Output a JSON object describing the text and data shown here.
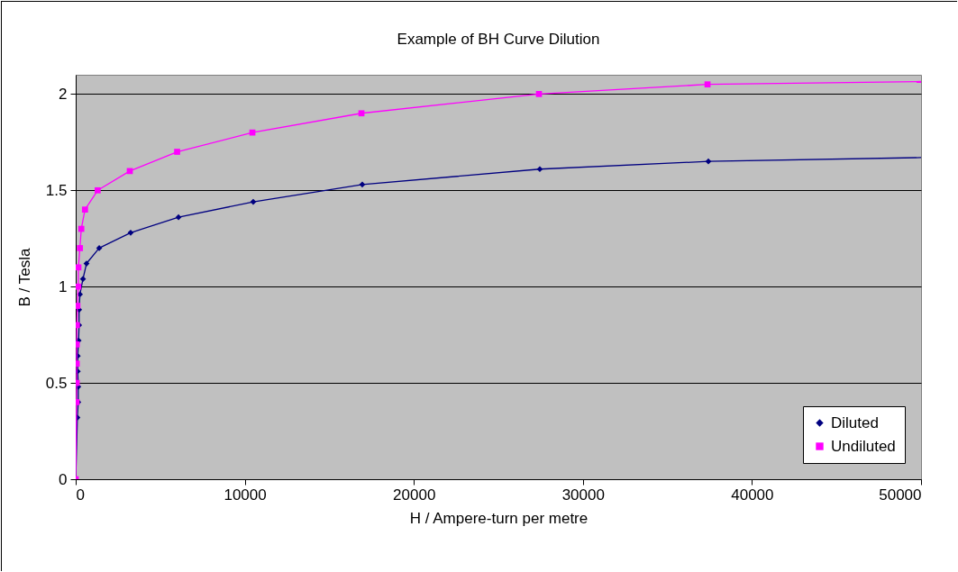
{
  "chart_data": {
    "type": "line",
    "title": "Example of BH Curve Dilution",
    "xlabel": "H / Ampere-turn per metre",
    "ylabel": "B / Tesla",
    "xlim": [
      0,
      50000
    ],
    "xticks": [
      0,
      10000,
      20000,
      30000,
      40000,
      50000
    ],
    "ylim": [
      0,
      2.1
    ],
    "yticks": [
      0,
      0.5,
      1,
      1.5,
      2
    ],
    "grid": "y",
    "legend": "bottom right",
    "series": [
      {
        "name": "Diluted",
        "color": "#000080",
        "marker": "diamond",
        "x": [
          0,
          100,
          150,
          150,
          120,
          120,
          170,
          200,
          200,
          250,
          430,
          640,
          1390,
          3250,
          6080,
          10500,
          16950,
          27450,
          37420
        ],
        "values": [
          0,
          0.32,
          0.4,
          0.48,
          0.56,
          0.64,
          0.72,
          0.8,
          0.88,
          0.96,
          1.04,
          1.12,
          1.2,
          1.28,
          1.36,
          1.44,
          1.53,
          1.61,
          1.65
        ]
      },
      {
        "name": "Undiluted",
        "color": "#ff00ff",
        "marker": "square",
        "x": [
          0,
          50,
          60,
          60,
          60,
          70,
          100,
          150,
          160,
          250,
          330,
          550,
          1300,
          3200,
          6000,
          10450,
          16900,
          27400,
          37370
        ],
        "values": [
          0,
          0.4,
          0.5,
          0.6,
          0.7,
          0.8,
          0.9,
          1,
          1.1,
          1.2,
          1.3,
          1.4,
          1.5,
          1.6,
          1.7,
          1.8,
          1.9,
          2,
          2.05
        ]
      },
      {
        "color": "#000080",
        "marker": "none",
        "x": [
          37420,
          50000
        ],
        "values": [
          1.65,
          1.67
        ]
      },
      {
        "color": "#ff00ff",
        "marker": "none",
        "x": [
          37370,
          50000
        ],
        "values": [
          2.05,
          2.065
        ]
      }
    ]
  }
}
